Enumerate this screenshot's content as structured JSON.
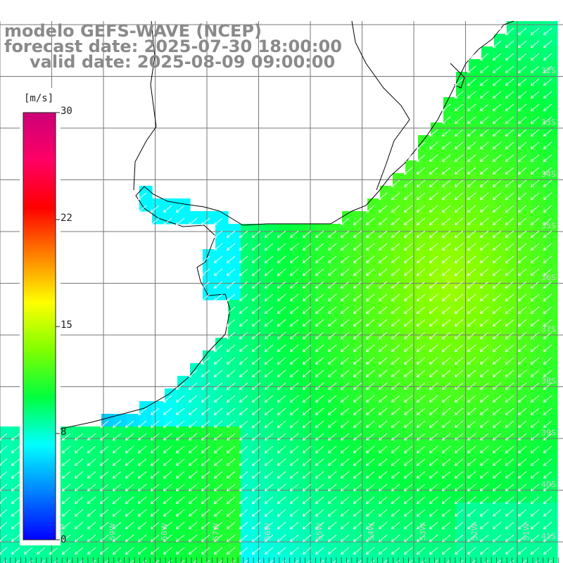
{
  "titles": {
    "model": "modelo GEFS-WAVE (NCEP)",
    "forecast": "forecast date: 2025-07-30 18:00:00",
    "valid": "valid date: 2025-08-09 09:00:00"
  },
  "colorbar": {
    "unit": "[m/s]",
    "ticks": [
      "30",
      "22",
      "15",
      "8",
      "0"
    ],
    "range": [
      0,
      30
    ],
    "colors": [
      "#0000ff",
      "#0080ff",
      "#00ffff",
      "#00ff40",
      "#80ff00",
      "#ffff00",
      "#ff8000",
      "#ff0000",
      "#ff0066",
      "#cc0077"
    ]
  },
  "grid": {
    "lat_labels": [
      "32S",
      "33S",
      "34S",
      "35S",
      "36S",
      "37S",
      "38S",
      "39S",
      "40S",
      "41S"
    ],
    "lon_labels": [
      "60W",
      "59W",
      "58W",
      "57W",
      "56W",
      "55W",
      "54W",
      "53W",
      "52W",
      "51W"
    ],
    "lon_range": [
      -61,
      -50.2
    ],
    "lat_range": [
      -31.2,
      -41.7
    ]
  },
  "colors": {
    "land": "#ffffff",
    "gridline": "#777777",
    "coastline": "#000000",
    "arrow": "#ffffff",
    "title": "#8a8a8a"
  },
  "wind": {
    "direction": "from NE",
    "max_speed": 14.5
  }
}
